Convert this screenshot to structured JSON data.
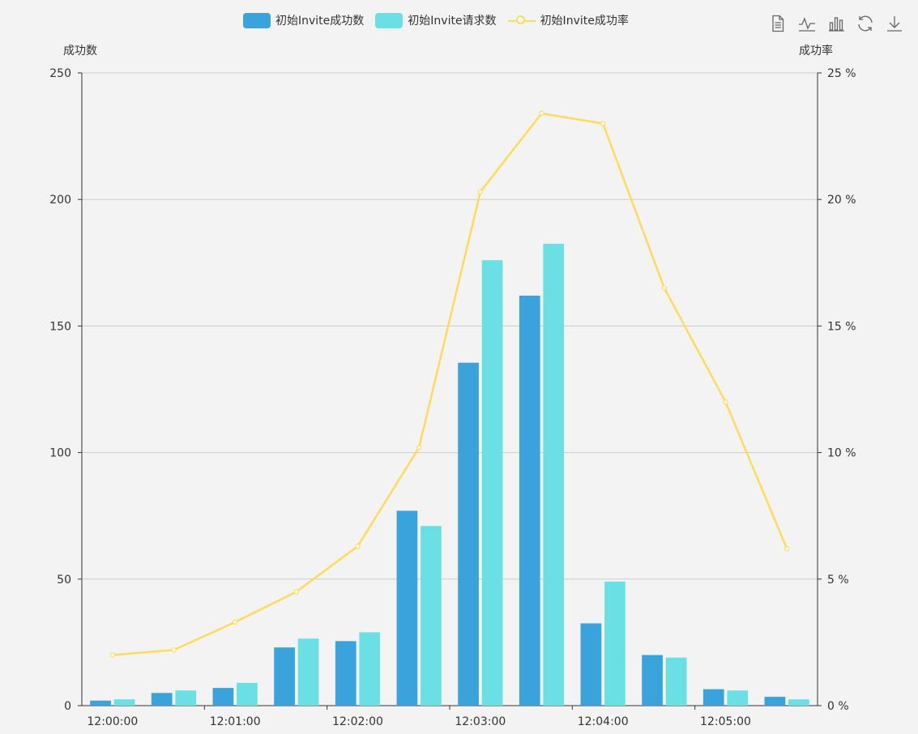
{
  "legend": [
    {
      "name": "初始Invite成功数",
      "kind": "bar",
      "color": "#3aa3dc"
    },
    {
      "name": "初始Invite请求数",
      "kind": "bar",
      "color": "#6ae0e4"
    },
    {
      "name": "初始Invite成功率",
      "kind": "line",
      "color": "#ffdb5c"
    }
  ],
  "toolbox": [
    {
      "name": "data-view-icon"
    },
    {
      "name": "line-chart-icon"
    },
    {
      "name": "bar-chart-icon"
    },
    {
      "name": "refresh-icon"
    },
    {
      "name": "download-icon"
    }
  ],
  "axes": {
    "left_name": "成功数",
    "right_name": "成功率"
  },
  "chart_data": {
    "type": "bar",
    "categories": [
      "12:00:00",
      "12:00:30",
      "12:01:00",
      "12:01:30",
      "12:02:00",
      "12:02:30",
      "12:03:00",
      "12:03:30",
      "12:04:00",
      "12:04:30",
      "12:05:00",
      "12:05:30"
    ],
    "x_tick_labels": [
      "12:00:00",
      "12:01:00",
      "12:02:00",
      "12:03:00",
      "12:04:00",
      "12:05:00"
    ],
    "series": [
      {
        "name": "初始Invite成功数",
        "type": "bar",
        "axis": "left",
        "color": "#3aa3dc",
        "values": [
          2,
          5,
          7,
          23,
          25.5,
          77,
          135.5,
          162,
          32.5,
          20,
          6.5,
          3.5
        ]
      },
      {
        "name": "初始Invite请求数",
        "type": "bar",
        "axis": "left",
        "color": "#6ae0e4",
        "values": [
          2.5,
          6,
          9,
          26.5,
          29,
          71,
          176,
          182.5,
          49,
          19,
          6,
          2.5
        ]
      },
      {
        "name": "初始Invite成功率",
        "type": "line",
        "axis": "right",
        "color": "#ffdb5c",
        "values": [
          2.0,
          2.2,
          3.3,
          4.5,
          6.3,
          10.2,
          20.3,
          23.4,
          23.0,
          16.5,
          12.0,
          6.2
        ]
      }
    ],
    "y_left": {
      "min": 0,
      "max": 250,
      "ticks": [
        0,
        50,
        100,
        150,
        200,
        250
      ]
    },
    "y_right": {
      "min": 0,
      "max": 25,
      "ticks": [
        0,
        5,
        10,
        15,
        20,
        25
      ],
      "tick_labels": [
        "0 %",
        "5 %",
        "10 %",
        "15 %",
        "20 %",
        "25 %"
      ]
    },
    "grid": true,
    "legend_position": "top-center"
  }
}
